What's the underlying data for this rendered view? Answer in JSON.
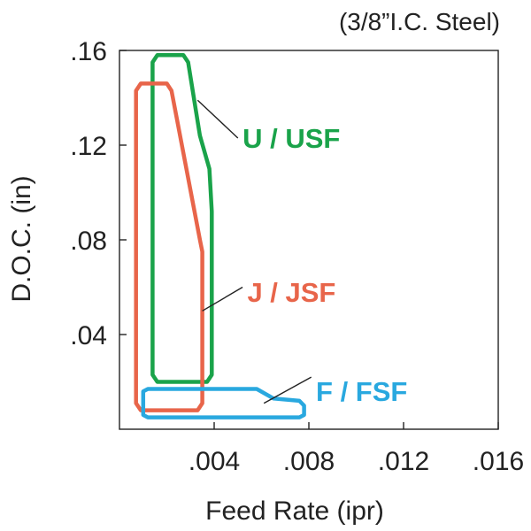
{
  "chart_data": {
    "type": "area",
    "title": "",
    "note": "(3/8”I.C. Steel)",
    "xlabel": "Feed Rate (ipr)",
    "ylabel": "D.O.C. (in)",
    "xlim": [
      0,
      0.016
    ],
    "ylim": [
      0,
      0.16
    ],
    "x_ticks": [
      0.004,
      0.008,
      0.012,
      0.016
    ],
    "x_tick_labels": [
      ".004",
      ".008",
      ".012",
      ".016"
    ],
    "y_ticks": [
      0.04,
      0.08,
      0.12,
      0.16
    ],
    "y_tick_labels": [
      ".04",
      ".08",
      ".12",
      ".16"
    ],
    "grid": false,
    "series": [
      {
        "name": "U / USF",
        "color": "#1aa34a",
        "label_at": [
          0.0052,
          0.123
        ],
        "leader": [
          [
            0.0033,
            0.139
          ],
          [
            0.005,
            0.123
          ]
        ],
        "outline": [
          [
            0.0014,
            0.155
          ],
          [
            0.0016,
            0.158
          ],
          [
            0.0027,
            0.158
          ],
          [
            0.0029,
            0.155
          ],
          [
            0.0034,
            0.124
          ],
          [
            0.0038,
            0.11
          ],
          [
            0.0039,
            0.092
          ],
          [
            0.0039,
            0.023
          ],
          [
            0.0037,
            0.02
          ],
          [
            0.0016,
            0.02
          ],
          [
            0.0014,
            0.023
          ]
        ]
      },
      {
        "name": "J / JSF",
        "color": "#e8654a",
        "label_at": [
          0.0054,
          0.058
        ],
        "leader": [
          [
            0.0035,
            0.05
          ],
          [
            0.0052,
            0.06
          ]
        ],
        "outline": [
          [
            0.0007,
            0.143
          ],
          [
            0.0009,
            0.146
          ],
          [
            0.002,
            0.146
          ],
          [
            0.0022,
            0.143
          ],
          [
            0.0034,
            0.08
          ],
          [
            0.0035,
            0.075
          ],
          [
            0.0035,
            0.011
          ],
          [
            0.0033,
            0.008
          ],
          [
            0.0009,
            0.008
          ],
          [
            0.0007,
            0.011
          ]
        ]
      },
      {
        "name": "F / FSF",
        "color": "#29a8df",
        "label_at": [
          0.0083,
          0.016
        ],
        "leader": [
          [
            0.0061,
            0.011
          ],
          [
            0.0081,
            0.022
          ]
        ],
        "outline": [
          [
            0.001,
            0.016
          ],
          [
            0.0012,
            0.017
          ],
          [
            0.0058,
            0.017
          ],
          [
            0.0065,
            0.013
          ],
          [
            0.0076,
            0.012
          ],
          [
            0.0078,
            0.01
          ],
          [
            0.0078,
            0.006
          ],
          [
            0.0076,
            0.005
          ],
          [
            0.0012,
            0.005
          ],
          [
            0.001,
            0.006
          ]
        ]
      }
    ]
  }
}
